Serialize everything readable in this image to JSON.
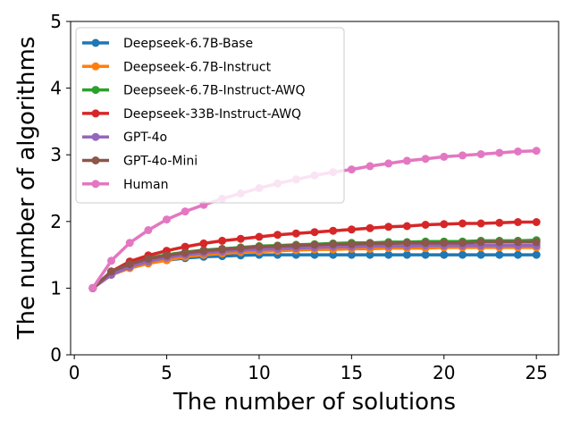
{
  "chart_data": {
    "type": "line",
    "title": "",
    "xlabel": "The number of solutions",
    "ylabel": "The number of algorithms",
    "xlim": [
      -0.2,
      26.2
    ],
    "ylim": [
      0,
      5
    ],
    "xticks": [
      0,
      5,
      10,
      15,
      20,
      25
    ],
    "yticks": [
      0,
      1,
      2,
      3,
      4,
      5
    ],
    "grid": false,
    "legend_position": "upper-left",
    "x": [
      1,
      2,
      3,
      4,
      5,
      6,
      7,
      8,
      9,
      10,
      11,
      12,
      13,
      14,
      15,
      16,
      17,
      18,
      19,
      20,
      21,
      22,
      23,
      24,
      25
    ],
    "series": [
      {
        "name": "Deepseek-6.7B-Base",
        "color": "#1f77b4",
        "values": [
          1.0,
          1.22,
          1.33,
          1.38,
          1.42,
          1.45,
          1.47,
          1.48,
          1.49,
          1.5,
          1.5,
          1.5,
          1.5,
          1.5,
          1.5,
          1.5,
          1.5,
          1.5,
          1.5,
          1.5,
          1.5,
          1.5,
          1.5,
          1.5,
          1.5
        ]
      },
      {
        "name": "Deepseek-6.7B-Instruct",
        "color": "#ff7f0e",
        "values": [
          1.0,
          1.2,
          1.3,
          1.37,
          1.42,
          1.47,
          1.5,
          1.52,
          1.54,
          1.55,
          1.56,
          1.57,
          1.58,
          1.58,
          1.59,
          1.59,
          1.6,
          1.6,
          1.6,
          1.61,
          1.61,
          1.61,
          1.61,
          1.61,
          1.61
        ]
      },
      {
        "name": "Deepseek-6.7B-Instruct-AWQ",
        "color": "#2ca02c",
        "values": [
          1.0,
          1.25,
          1.38,
          1.45,
          1.5,
          1.54,
          1.57,
          1.59,
          1.61,
          1.63,
          1.64,
          1.65,
          1.66,
          1.67,
          1.68,
          1.68,
          1.69,
          1.69,
          1.7,
          1.7,
          1.7,
          1.71,
          1.71,
          1.71,
          1.72
        ]
      },
      {
        "name": "Deepseek-33B-Instruct-AWQ",
        "color": "#d62728",
        "values": [
          1.0,
          1.25,
          1.4,
          1.49,
          1.56,
          1.62,
          1.67,
          1.71,
          1.74,
          1.77,
          1.8,
          1.82,
          1.84,
          1.86,
          1.88,
          1.9,
          1.92,
          1.93,
          1.95,
          1.96,
          1.97,
          1.97,
          1.98,
          1.99,
          1.99
        ]
      },
      {
        "name": "GPT-4o",
        "color": "#9467bd",
        "values": [
          1.0,
          1.2,
          1.32,
          1.4,
          1.46,
          1.5,
          1.53,
          1.55,
          1.57,
          1.58,
          1.59,
          1.6,
          1.61,
          1.62,
          1.62,
          1.63,
          1.63,
          1.63,
          1.64,
          1.64,
          1.64,
          1.64,
          1.64,
          1.64,
          1.64
        ]
      },
      {
        "name": "GPT-4o-Mini",
        "color": "#8c564b",
        "values": [
          1.0,
          1.25,
          1.36,
          1.44,
          1.49,
          1.53,
          1.56,
          1.58,
          1.6,
          1.62,
          1.63,
          1.64,
          1.65,
          1.66,
          1.66,
          1.67,
          1.67,
          1.68,
          1.68,
          1.68,
          1.68,
          1.69,
          1.69,
          1.69,
          1.69
        ]
      },
      {
        "name": "Human",
        "color": "#e377c2",
        "values": [
          1.0,
          1.41,
          1.68,
          1.87,
          2.03,
          2.15,
          2.25,
          2.34,
          2.42,
          2.5,
          2.57,
          2.63,
          2.69,
          2.74,
          2.78,
          2.83,
          2.87,
          2.91,
          2.94,
          2.97,
          2.99,
          3.01,
          3.03,
          3.05,
          3.06
        ]
      }
    ]
  }
}
